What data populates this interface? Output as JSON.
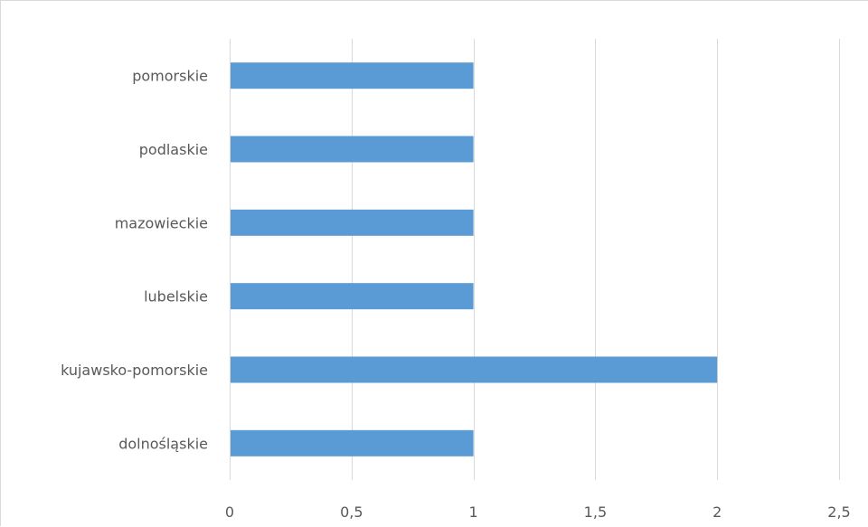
{
  "chart_data": {
    "type": "bar",
    "orientation": "horizontal",
    "categories": [
      "pomorskie",
      "podlaskie",
      "mazowieckie",
      "lubelskie",
      "kujawsko-pomorskie",
      "dolnośląskie"
    ],
    "values": [
      1,
      1,
      1,
      1,
      2,
      1
    ],
    "xlim": [
      0,
      2.5
    ],
    "ticks": [
      0,
      0.5,
      1,
      1.5,
      2,
      2.5
    ],
    "tick_labels": [
      "0",
      "0,5",
      "1",
      "1,5",
      "2",
      "2,5"
    ],
    "grid": true,
    "bar_color": "#5b9bd5",
    "grid_color": "#d9d9d9",
    "label_color": "#595959"
  }
}
